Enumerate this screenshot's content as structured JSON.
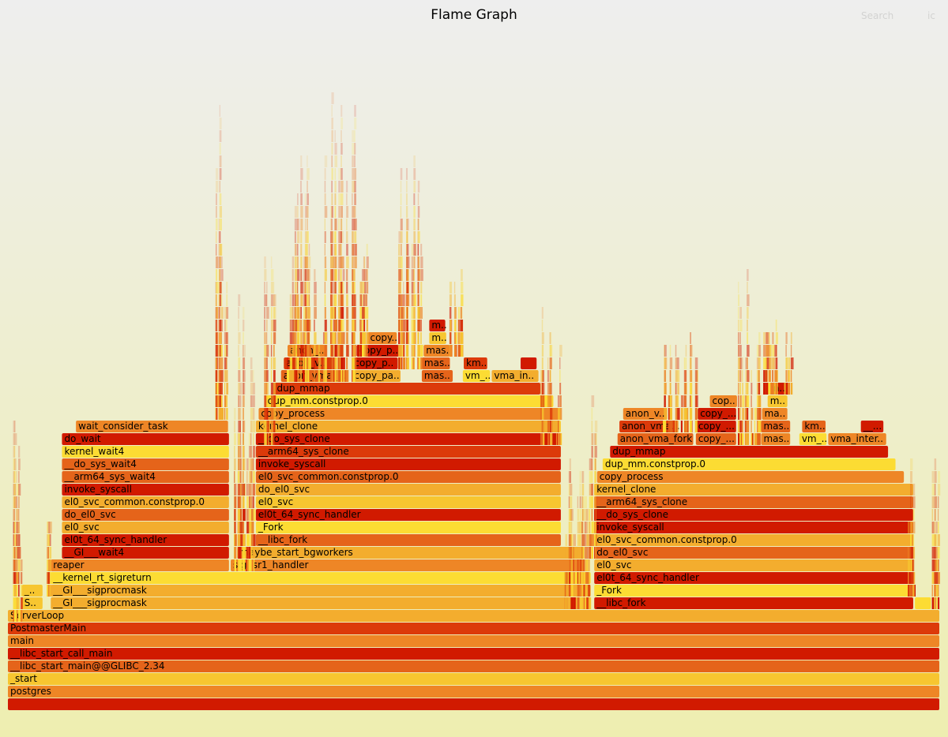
{
  "title": "Flame Graph",
  "controls": {
    "search": "Search",
    "ignorecase": "ic"
  },
  "palette": [
    "#d11a00",
    "#dc3a0a",
    "#e5641a",
    "#ee8626",
    "#f3ad2e",
    "#f7c630",
    "#fcdc33"
  ],
  "chart_data": {
    "type": "flamegraph",
    "unit": "percent_of_total",
    "frames": [
      {
        "name": "",
        "start": 0,
        "width": 100,
        "depth": 0,
        "color": 0
      },
      {
        "name": "postgres",
        "start": 0,
        "width": 100,
        "depth": 1,
        "color": 3
      },
      {
        "name": "_start",
        "start": 0,
        "width": 100,
        "depth": 2,
        "color": 5
      },
      {
        "name": "__libc_start_main@@GLIBC_2.34",
        "start": 0,
        "width": 100,
        "depth": 3,
        "color": 2
      },
      {
        "name": "__libc_start_call_main",
        "start": 0,
        "width": 100,
        "depth": 4,
        "color": 0
      },
      {
        "name": "main",
        "start": 0,
        "width": 100,
        "depth": 5,
        "color": 3
      },
      {
        "name": "PostmasterMain",
        "start": 0,
        "width": 100,
        "depth": 6,
        "color": 1
      },
      {
        "name": "ServerLoop",
        "start": 0,
        "width": 100,
        "depth": 7,
        "color": 4
      },
      {
        "name": "S..",
        "start": 1.5,
        "width": 2.3,
        "depth": 8,
        "color": 5
      },
      {
        "name": "__GI___sigprocmask",
        "start": 4.6,
        "width": 58.0,
        "depth": 8,
        "color": 4
      },
      {
        "name": "__libc_fork",
        "start": 62.9,
        "width": 34.3,
        "depth": 8,
        "color": 0
      },
      {
        "name": "",
        "start": 97.3,
        "width": 1.8,
        "depth": 8,
        "color": 6
      },
      {
        "name": "_..",
        "start": 1.5,
        "width": 2.3,
        "depth": 9,
        "color": 5
      },
      {
        "name": "__GI___sigprocmask",
        "start": 4.6,
        "width": 58.0,
        "depth": 9,
        "color": 4
      },
      {
        "name": "_Fork",
        "start": 62.9,
        "width": 34.3,
        "depth": 9,
        "color": 6
      },
      {
        "name": "__kernel_rt_sigreturn",
        "start": 4.6,
        "width": 58.0,
        "depth": 10,
        "color": 6
      },
      {
        "name": "el0t_64_sync_handler",
        "start": 62.9,
        "width": 34.3,
        "depth": 10,
        "color": 0
      },
      {
        "name": "reaper",
        "start": 4.6,
        "width": 19.2,
        "depth": 11,
        "color": 3
      },
      {
        "name": "sigusr1_handler",
        "start": 23.9,
        "width": 38.0,
        "depth": 11,
        "color": 3
      },
      {
        "name": "el0_svc",
        "start": 62.9,
        "width": 34.3,
        "depth": 11,
        "color": 4
      },
      {
        "name": "__GI___wait4",
        "start": 5.8,
        "width": 18.0,
        "depth": 12,
        "color": 0
      },
      {
        "name": "maybe_start_bgworkers",
        "start": 24.6,
        "width": 37.3,
        "depth": 12,
        "color": 4
      },
      {
        "name": "do_el0_svc",
        "start": 62.9,
        "width": 34.3,
        "depth": 12,
        "color": 2
      },
      {
        "name": "el0t_64_sync_handler",
        "start": 5.8,
        "width": 18.0,
        "depth": 13,
        "color": 0
      },
      {
        "name": "__libc_fork",
        "start": 26.6,
        "width": 32.8,
        "depth": 13,
        "color": 2
      },
      {
        "name": "el0_svc_common.constprop.0",
        "start": 62.9,
        "width": 34.3,
        "depth": 13,
        "color": 4
      },
      {
        "name": "el0_svc",
        "start": 5.8,
        "width": 18.0,
        "depth": 14,
        "color": 4
      },
      {
        "name": "_Fork",
        "start": 26.6,
        "width": 32.8,
        "depth": 14,
        "color": 6
      },
      {
        "name": "invoke_syscall",
        "start": 62.9,
        "width": 34.3,
        "depth": 14,
        "color": 0
      },
      {
        "name": "do_el0_svc",
        "start": 5.8,
        "width": 18.0,
        "depth": 15,
        "color": 2
      },
      {
        "name": "el0t_64_sync_handler",
        "start": 26.6,
        "width": 32.8,
        "depth": 15,
        "color": 0
      },
      {
        "name": "__do_sys_clone",
        "start": 62.9,
        "width": 34.3,
        "depth": 15,
        "color": 0
      },
      {
        "name": "el0_svc_common.constprop.0",
        "start": 5.8,
        "width": 18.0,
        "depth": 16,
        "color": 4
      },
      {
        "name": "el0_svc",
        "start": 26.6,
        "width": 32.8,
        "depth": 16,
        "color": 5
      },
      {
        "name": "__arm64_sys_clone",
        "start": 62.9,
        "width": 34.3,
        "depth": 16,
        "color": 2
      },
      {
        "name": "invoke_syscall",
        "start": 5.8,
        "width": 18.0,
        "depth": 17,
        "color": 0
      },
      {
        "name": "do_el0_svc",
        "start": 26.6,
        "width": 32.8,
        "depth": 17,
        "color": 4
      },
      {
        "name": "kernel_clone",
        "start": 62.9,
        "width": 34.3,
        "depth": 17,
        "color": 4
      },
      {
        "name": "__arm64_sys_wait4",
        "start": 5.8,
        "width": 18.0,
        "depth": 18,
        "color": 2
      },
      {
        "name": "el0_svc_common.constprop.0",
        "start": 26.6,
        "width": 32.8,
        "depth": 18,
        "color": 2
      },
      {
        "name": "copy_process",
        "start": 63.2,
        "width": 33.0,
        "depth": 18,
        "color": 3
      },
      {
        "name": "__do_sys_wait4",
        "start": 5.8,
        "width": 18.0,
        "depth": 19,
        "color": 2
      },
      {
        "name": "invoke_syscall",
        "start": 26.6,
        "width": 32.8,
        "depth": 19,
        "color": 0
      },
      {
        "name": "dup_mm.constprop.0",
        "start": 63.8,
        "width": 31.5,
        "depth": 19,
        "color": 6
      },
      {
        "name": "kernel_wait4",
        "start": 5.8,
        "width": 18.0,
        "depth": 20,
        "color": 6
      },
      {
        "name": "__arm64_sys_clone",
        "start": 26.6,
        "width": 32.8,
        "depth": 20,
        "color": 1
      },
      {
        "name": "dup_mmap",
        "start": 64.6,
        "width": 29.9,
        "depth": 20,
        "color": 0
      },
      {
        "name": "do_wait",
        "start": 5.8,
        "width": 18.0,
        "depth": 21,
        "color": 0
      },
      {
        "name": "__do_sys_clone",
        "start": 26.6,
        "width": 32.8,
        "depth": 21,
        "color": 0
      },
      {
        "name": "anon_vma_fork",
        "start": 65.4,
        "width": 8.2,
        "depth": 21,
        "color": 2
      },
      {
        "name": "copy_...",
        "start": 73.8,
        "width": 4.4,
        "depth": 21,
        "color": 2
      },
      {
        "name": "mas..",
        "start": 80.8,
        "width": 3.2,
        "depth": 21,
        "color": 3
      },
      {
        "name": "vm_...",
        "start": 84.9,
        "width": 3.0,
        "depth": 21,
        "color": 6
      },
      {
        "name": "vma_inter..",
        "start": 88.0,
        "width": 6.3,
        "depth": 21,
        "color": 3
      },
      {
        "name": "wait_consider_task",
        "start": 7.3,
        "width": 16.4,
        "depth": 22,
        "color": 3
      },
      {
        "name": "kernel_clone",
        "start": 26.6,
        "width": 32.8,
        "depth": 22,
        "color": 4
      },
      {
        "name": "anon_vma...",
        "start": 65.6,
        "width": 6.4,
        "depth": 22,
        "color": 1
      },
      {
        "name": "copy_...",
        "start": 73.8,
        "width": 4.4,
        "depth": 22,
        "color": 0
      },
      {
        "name": "mas..",
        "start": 80.8,
        "width": 3.2,
        "depth": 22,
        "color": 2
      },
      {
        "name": "km..",
        "start": 85.2,
        "width": 2.6,
        "depth": 22,
        "color": 2
      },
      {
        "name": "__...",
        "start": 91.5,
        "width": 2.5,
        "depth": 22,
        "color": 0
      },
      {
        "name": "copy_process",
        "start": 26.9,
        "width": 32.4,
        "depth": 23,
        "color": 3
      },
      {
        "name": "anon_v..",
        "start": 66.0,
        "width": 4.8,
        "depth": 23,
        "color": 3
      },
      {
        "name": "copy_...",
        "start": 74.0,
        "width": 4.2,
        "depth": 23,
        "color": 0
      },
      {
        "name": "ma..",
        "start": 80.9,
        "width": 2.8,
        "depth": 23,
        "color": 3
      },
      {
        "name": "dup_mm.constprop.0",
        "start": 27.6,
        "width": 31.0,
        "depth": 24,
        "color": 6
      },
      {
        "name": "cop..",
        "start": 75.3,
        "width": 3.0,
        "depth": 24,
        "color": 3
      },
      {
        "name": "m..",
        "start": 81.5,
        "width": 2.2,
        "depth": 24,
        "color": 5
      },
      {
        "name": "dup_mmap",
        "start": 28.6,
        "width": 28.6,
        "depth": 25,
        "color": 1
      },
      {
        "name": "m..",
        "start": 81.5,
        "width": 2.0,
        "depth": 25,
        "color": 0
      },
      {
        "name": "anon_vma_f..",
        "start": 29.3,
        "width": 7.3,
        "depth": 26,
        "color": 2
      },
      {
        "name": "copy_pa..",
        "start": 36.9,
        "width": 5.3,
        "depth": 26,
        "color": 4
      },
      {
        "name": "mas..",
        "start": 44.4,
        "width": 3.4,
        "depth": 26,
        "color": 2
      },
      {
        "name": "vm_...",
        "start": 48.8,
        "width": 3.0,
        "depth": 26,
        "color": 6
      },
      {
        "name": "vma_in..",
        "start": 51.9,
        "width": 5.1,
        "depth": 26,
        "color": 4
      },
      {
        "name": "anon_v..",
        "start": 29.6,
        "width": 5.2,
        "depth": 27,
        "color": 1
      },
      {
        "name": "copy_p..",
        "start": 36.9,
        "width": 5.0,
        "depth": 27,
        "color": 0
      },
      {
        "name": "mas..",
        "start": 44.4,
        "width": 3.1,
        "depth": 27,
        "color": 2
      },
      {
        "name": "km..",
        "start": 48.9,
        "width": 2.6,
        "depth": 27,
        "color": 1
      },
      {
        "name": "",
        "start": 55.0,
        "width": 1.8,
        "depth": 27,
        "color": 0
      },
      {
        "name": "anon_..",
        "start": 30.0,
        "width": 4.1,
        "depth": 28,
        "color": 3
      },
      {
        "name": "copy_p..",
        "start": 37.4,
        "width": 4.6,
        "depth": 28,
        "color": 0
      },
      {
        "name": "mas..",
        "start": 44.6,
        "width": 2.9,
        "depth": 28,
        "color": 3
      },
      {
        "name": "copy..",
        "start": 38.6,
        "width": 3.2,
        "depth": 29,
        "color": 3
      },
      {
        "name": "m..",
        "start": 45.2,
        "width": 1.9,
        "depth": 29,
        "color": 5
      },
      {
        "name": "m..",
        "start": 45.2,
        "width": 1.8,
        "depth": 30,
        "color": 0
      }
    ]
  }
}
